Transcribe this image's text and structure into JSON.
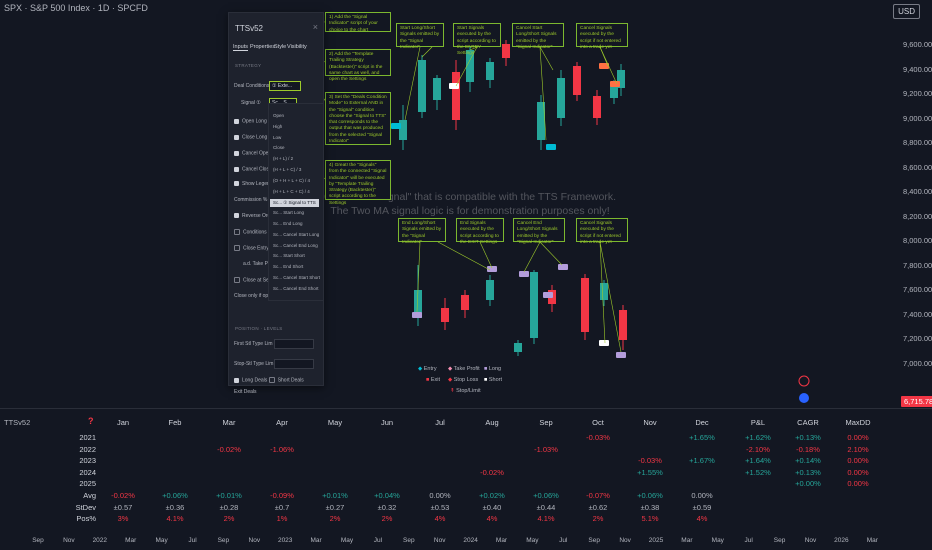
{
  "header": {
    "symbol": "SPX · S&P 500 Index · 1D · SPCFD",
    "currency": "USD"
  },
  "price_axis": {
    "labels": [
      "9,600.00",
      "9,400.00",
      "9,200.00",
      "9,000.00",
      "8,800.00",
      "8,600.00",
      "8,400.00",
      "8,200.00",
      "8,000.00",
      "7,800.00",
      "7,600.00",
      "7,400.00",
      "7,200.00",
      "7,000.00"
    ],
    "last_price": "6,715.78"
  },
  "dialog": {
    "title": "TTSv52",
    "tabs": [
      "Inputs",
      "Properties",
      "Style",
      "Visibility"
    ],
    "section_label": "STRATEGY",
    "deal_conditions_label": "Deal Conditions Mode",
    "deal_conditions_value": "① Exte...",
    "signal_label": "Signal ①",
    "signal_value": "Sc... S...",
    "rows": [
      "Open Long",
      "Close Long",
      "Cancel Open Long",
      "Cancel Close Long",
      "Show Legend",
      "Commission % ①",
      "Reverse Orders",
      "Conditions of 1st Entry",
      "Close Entry % of Item",
      "a.d. Take Profit ①",
      "Close at Session End",
      "Close only if open profit is"
    ],
    "section2_label": "POSITION · LEVELS",
    "lower_rows": [
      "First Stl Type Lim",
      "Stop-Stl Type Lim",
      "Long Deals",
      "Exit Deals"
    ],
    "short_deals": "Short Deals"
  },
  "dropdown": {
    "items": [
      "Open",
      "High",
      "Low",
      "Close",
      "(H + L) / 2",
      "(H + L + C) / 3",
      "(O + H + L + C) / 4",
      "(H + L + C + C) / 4",
      "Sc... ① Signal to TTS",
      "Sc... Start Long",
      "Sc... End Long",
      "Sc... Cancel Start Long",
      "Sc... Cancel End Long",
      "Sc... Start Short",
      "Sc... End Short",
      "Sc... Cancel Start Short",
      "Sc... Cancel End Short"
    ],
    "selected_index": 8
  },
  "callouts": [
    "1) Add the \"Signal Indicator\" script of your choice to the chart",
    "2) Add the \"Template Trailing Strategy (Backtester)\" script in the same chart as well, and open the Settings",
    "3) Set the \"Deals Condition Mode\" to External AND in the \"Signal\" condition choose the \"Signal to TTS\" that corresponds to the output that was produced from the selected \"Signal Indicator\"",
    "4) Great! the \"Signals\" from the connected \"Signal Indicator\" will be executed by \"Template Trailing Strategy (Backtester)\" script according to the Settings",
    "Start Long/Short Signals emitted by the \"Signal Indicator\"",
    "Start Signals executed by the script according to the ENTRY Settings",
    "Cancel Start Long/Short Signals emitted by the \"Signal Indicator\"",
    "Cancel Signals executed by the script if not entered into a trade yet",
    "End Long/Short Signals emitted by the \"Signal Indicator\"",
    "End Signals executed by the script according to the EXIT Settings",
    "Cancel End Long/Short Signals emitted by the \"Signal Indicator\"",
    "Cancel Signals executed by the script if not entered into a trade yet"
  ],
  "watermark": {
    "line1": "Connect a \"Signal\" that is compatible with the TTS Framework.",
    "line2": "The Two MA signal logic is for demonstration purposes only!"
  },
  "legend": {
    "entry": "Entry",
    "take_profit": "Take Profit",
    "long": "Long",
    "exit": "Exit",
    "stop_loss": "Stop Loss",
    "short": "Short",
    "stop_limit": "Stop/Limit"
  },
  "colors": {
    "bull": "#26a69a",
    "bear": "#f23645",
    "accent": "#9ecb2b",
    "long_marker": "#b39ddb",
    "short_marker": "#ff7043",
    "entry_marker": "#00bcd4"
  },
  "panel": {
    "name": "TTSv52",
    "question": "?",
    "headers": [
      "Jan",
      "Feb",
      "Mar",
      "Apr",
      "May",
      "Jun",
      "Jul",
      "Aug",
      "Sep",
      "Oct",
      "Nov",
      "Dec",
      "P&L",
      "CAGR",
      "MaxDD"
    ],
    "rows": [
      {
        "label": "2021",
        "cells": [
          "",
          "",
          "",
          "",
          "",
          "",
          "",
          "",
          "",
          "-0.03%",
          "",
          "+1.65%",
          "+1.62%",
          "+0.13%",
          "0.00%"
        ]
      },
      {
        "label": "2022",
        "cells": [
          "",
          "",
          "-0.02%",
          "-1.06%",
          "",
          "",
          "",
          "",
          "-1.03%",
          "",
          "",
          "",
          "-2.10%",
          "-0.18%",
          "2.10%"
        ]
      },
      {
        "label": "2023",
        "cells": [
          "",
          "",
          "",
          "",
          "",
          "",
          "",
          "",
          "",
          "",
          "-0.03%",
          "+1.67%",
          "+1.64%",
          "+0.14%",
          "0.00%"
        ]
      },
      {
        "label": "2024",
        "cells": [
          "",
          "",
          "",
          "",
          "",
          "",
          "",
          "-0.02%",
          "",
          "",
          "+1.55%",
          "",
          "+1.52%",
          "+0.13%",
          "0.00%"
        ]
      },
      {
        "label": "2025",
        "cells": [
          "",
          "",
          "",
          "",
          "",
          "",
          "",
          "",
          "",
          "",
          "",
          "",
          "",
          "+0.00%",
          "0.00%"
        ]
      },
      {
        "label": "Avg",
        "cells": [
          "-0.02%",
          "+0.06%",
          "+0.01%",
          "-0.09%",
          "+0.01%",
          "+0.04%",
          "0.00%",
          "+0.02%",
          "+0.06%",
          "-0.07%",
          "+0.06%",
          "0.00%",
          "",
          "",
          ""
        ]
      },
      {
        "label": "StDev",
        "cells": [
          "±0.57",
          "±0.36",
          "±0.28",
          "±0.7",
          "±0.27",
          "±0.32",
          "±0.53",
          "±0.40",
          "±0.44",
          "±0.62",
          "±0.38",
          "±0.59",
          "",
          "",
          ""
        ]
      },
      {
        "label": "Pos%",
        "cells": [
          "3%",
          "4.1%",
          "2%",
          "1%",
          "2%",
          "2%",
          "4%",
          "4%",
          "4.1%",
          "2%",
          "5.1%",
          "4%",
          "",
          "",
          ""
        ]
      }
    ]
  },
  "time_axis": [
    "Sep",
    "Nov",
    "2022",
    "Mar",
    "May",
    "Jul",
    "Sep",
    "Nov",
    "2023",
    "Mar",
    "May",
    "Jul",
    "Sep",
    "Nov",
    "2024",
    "Mar",
    "May",
    "Jul",
    "Sep",
    "Nov",
    "2025",
    "Mar",
    "May",
    "Jul",
    "Sep",
    "Nov",
    "2026",
    "Mar"
  ]
}
